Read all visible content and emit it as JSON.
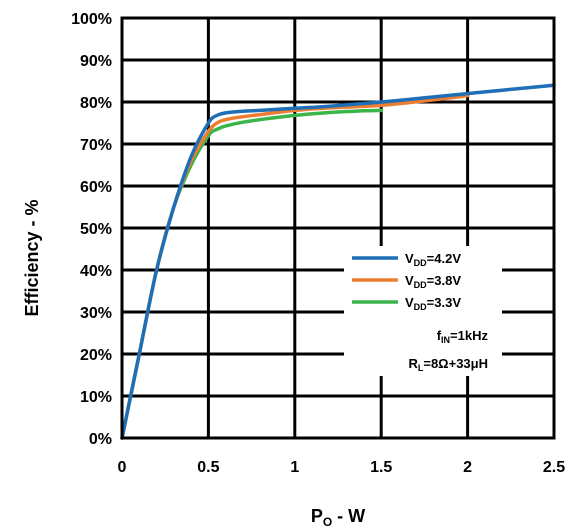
{
  "chart_data": {
    "type": "line",
    "xlabel": {
      "main": "P",
      "sub": "O",
      "rest": " - W"
    },
    "ylabel": "Efficiency - %",
    "xlim": [
      0,
      2.5
    ],
    "ylim": [
      0,
      100
    ],
    "x_ticks": [
      "0",
      "0.5",
      "1",
      "1.5",
      "2",
      "2.5"
    ],
    "y_ticks": [
      "0%",
      "10%",
      "20%",
      "30%",
      "40%",
      "50%",
      "60%",
      "70%",
      "80%",
      "90%",
      "100%"
    ],
    "grid": true,
    "legend_position": "right-middle",
    "series": [
      {
        "label": {
          "main": "V",
          "sub": "DD",
          "rest": "=4.2V"
        },
        "color": "#1f6fb8",
        "x": [
          0,
          0.1,
          0.2,
          0.3,
          0.4,
          0.5,
          0.55,
          0.6,
          0.7,
          0.8,
          1.0,
          1.2,
          1.5,
          1.8,
          2.0,
          2.2,
          2.5
        ],
        "y": [
          0,
          20,
          40,
          55,
          67,
          75,
          76.8,
          77.4,
          77.8,
          78,
          78.5,
          79,
          80,
          81.2,
          82,
          82.8,
          84
        ]
      },
      {
        "label": {
          "main": "V",
          "sub": "DD",
          "rest": "=3.8V"
        },
        "color": "#ed7d31",
        "x": [
          0,
          0.1,
          0.2,
          0.3,
          0.4,
          0.5,
          0.55,
          0.6,
          0.7,
          0.8,
          1.0,
          1.2,
          1.5,
          1.8,
          2.0
        ],
        "y": [
          0,
          20,
          40,
          55,
          66,
          73,
          75,
          75.8,
          76.5,
          77,
          78,
          78.6,
          79.2,
          80.5,
          81.5
        ]
      },
      {
        "label": {
          "main": "V",
          "sub": "DD",
          "rest": "=3.3V"
        },
        "color": "#3bb54a",
        "x": [
          0,
          0.1,
          0.2,
          0.3,
          0.4,
          0.5,
          0.55,
          0.6,
          0.7,
          0.8,
          1.0,
          1.2,
          1.4,
          1.5
        ],
        "y": [
          0,
          20,
          40,
          55,
          65,
          72,
          73.5,
          74.3,
          75.2,
          75.8,
          76.8,
          77.5,
          77.9,
          78
        ]
      }
    ],
    "annotations": [
      {
        "main": "f",
        "sub": "IN",
        "rest": "=1kHz"
      },
      {
        "main": "R",
        "sub": "L",
        "rest": "=8Ω+33μH"
      }
    ]
  }
}
